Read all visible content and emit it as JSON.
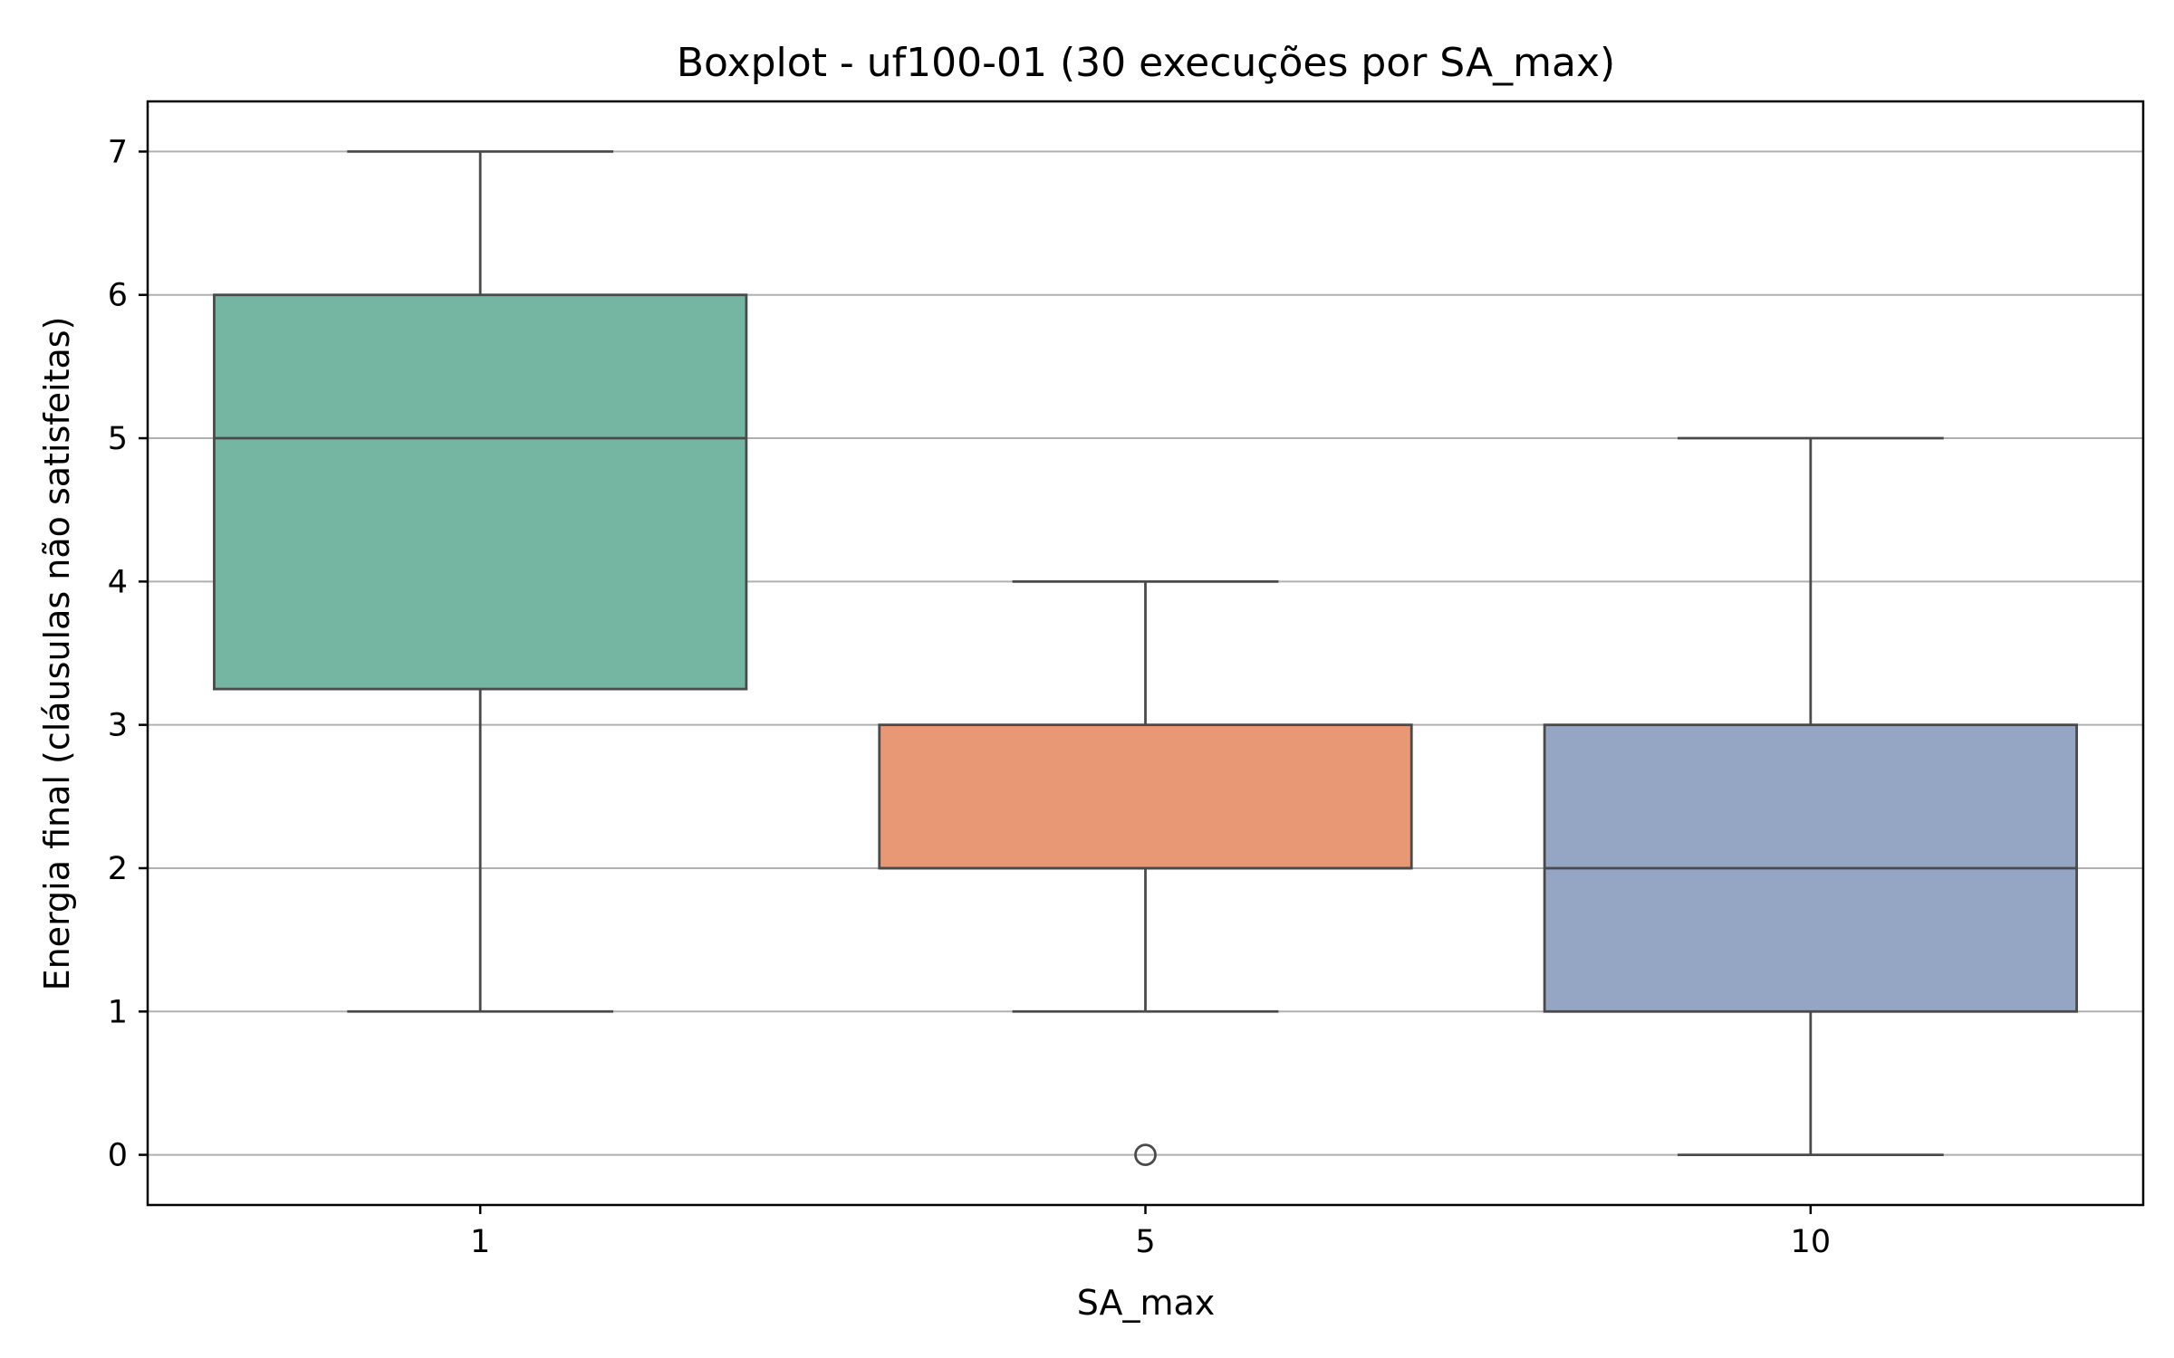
{
  "chart_data": {
    "type": "boxplot",
    "title": "Boxplot - uf100-01 (30 execuções por SA_max)",
    "xlabel": "SA_max",
    "ylabel": "Energia final (cláusulas não satisfeitas)",
    "categories": [
      "1",
      "5",
      "10"
    ],
    "ylim": [
      -0.35,
      7.35
    ],
    "yticks": [
      0,
      1,
      2,
      3,
      4,
      5,
      6,
      7
    ],
    "grid": "horizontal",
    "legend": "none",
    "boxes": [
      {
        "category": "1",
        "whisker_low": 1,
        "q1": 3.25,
        "median": 5,
        "q3": 6,
        "whisker_high": 7,
        "outliers": [],
        "color": "#74b6a1"
      },
      {
        "category": "5",
        "whisker_low": 1,
        "q1": 2,
        "median": 2,
        "q3": 3,
        "whisker_high": 4,
        "outliers": [
          0
        ],
        "color": "#e99876"
      },
      {
        "category": "10",
        "whisker_low": 0,
        "q1": 1,
        "median": 2,
        "q3": 3,
        "whisker_high": 5,
        "outliers": [],
        "color": "#95a5c4"
      }
    ]
  }
}
